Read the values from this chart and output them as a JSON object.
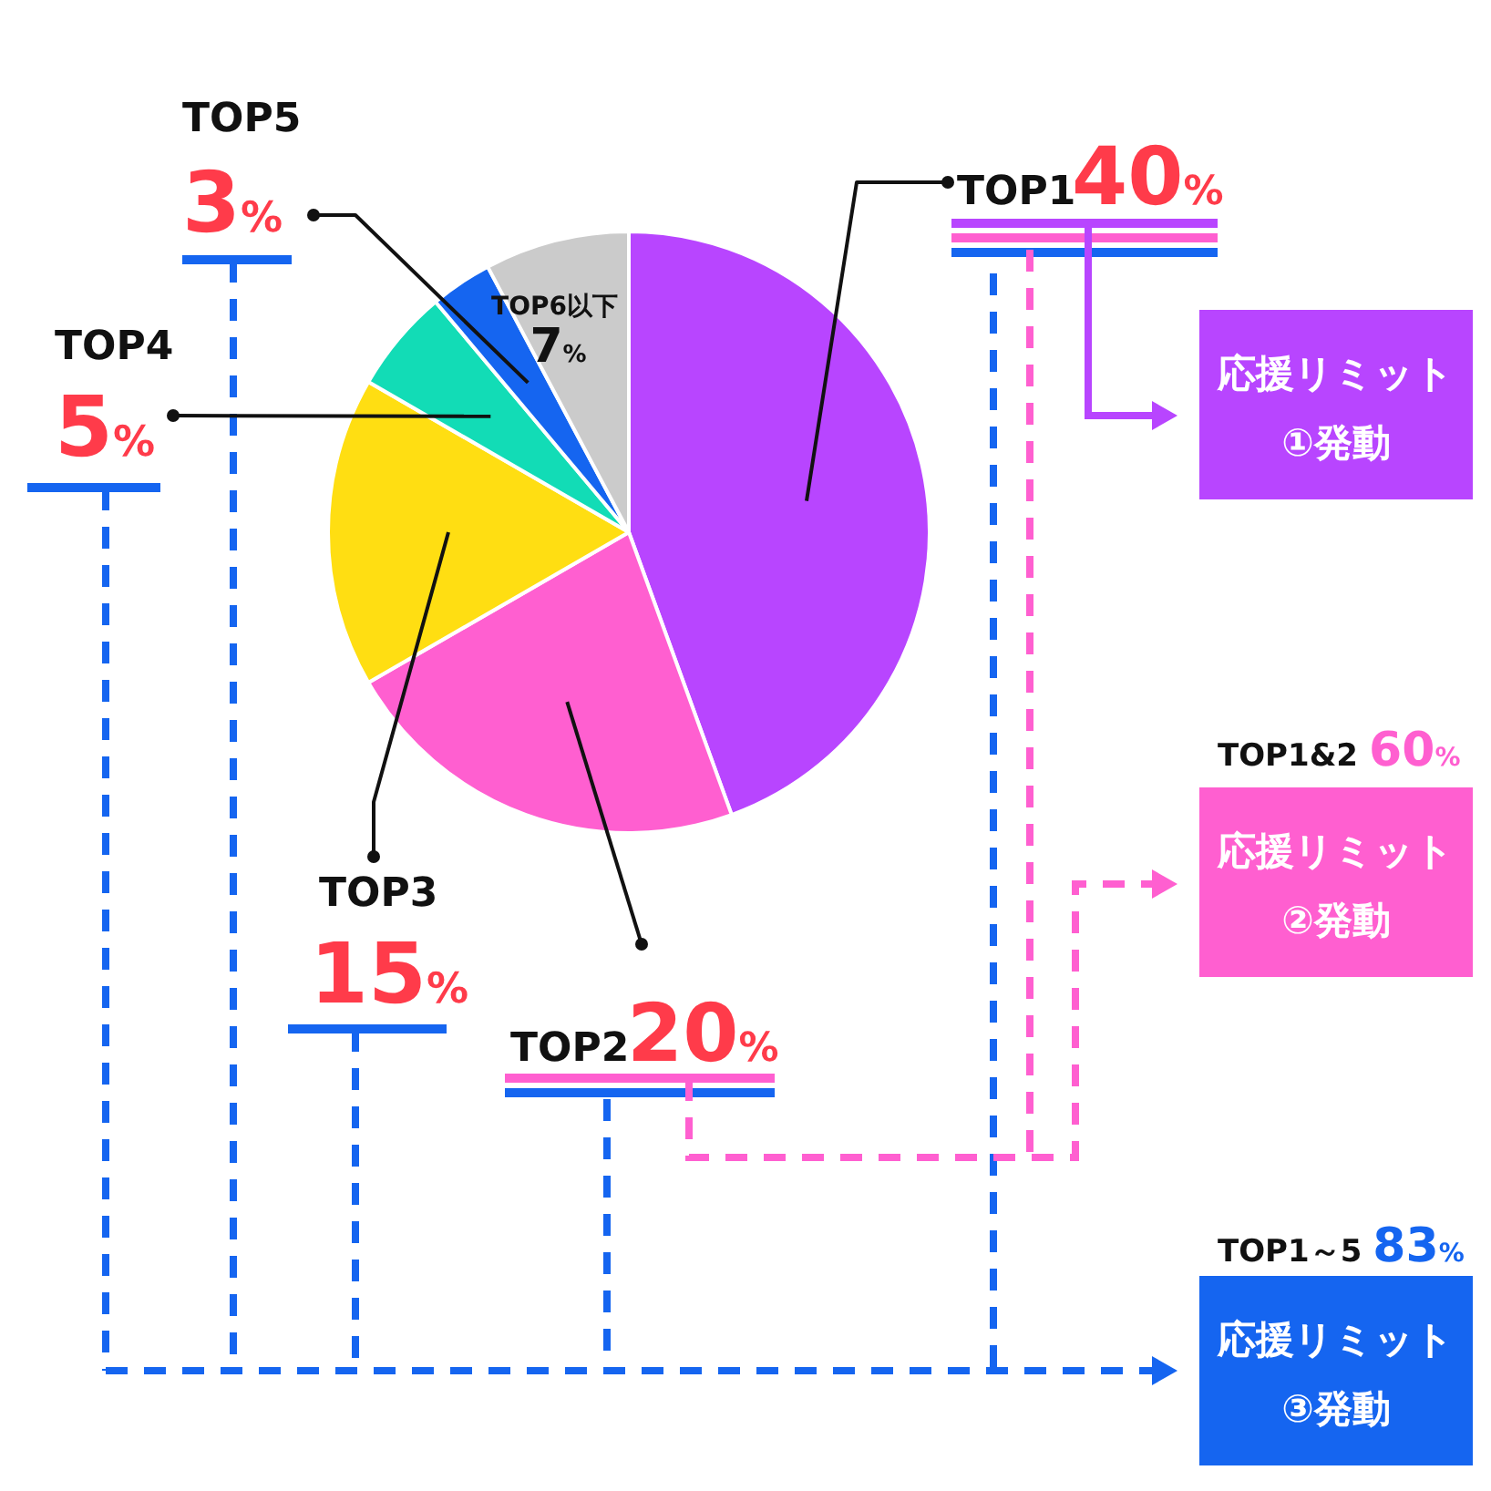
{
  "chart_data": {
    "type": "pie",
    "categories": [
      "TOP1",
      "TOP2",
      "TOP3",
      "TOP4",
      "TOP5",
      "TOP6以下"
    ],
    "values": [
      40,
      20,
      15,
      5,
      3,
      7
    ],
    "value_labels": [
      "40%",
      "20%",
      "15%",
      "5%",
      "3%",
      "7%"
    ],
    "colors": [
      "#b845ff",
      "#ff5fd0",
      "#ffde12",
      "#12dcb6",
      "#1565f0",
      "#cbcbcb"
    ],
    "annotations": [
      "応援リミット ①発動",
      "TOP1&2 60%",
      "応援リミット ②発動",
      "TOP1～5 83%",
      "応援リミット ③発動"
    ]
  }
}
